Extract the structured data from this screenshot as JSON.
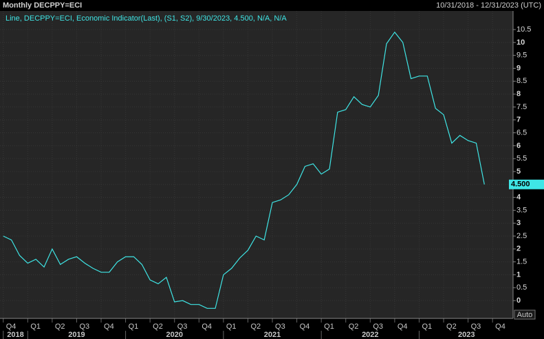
{
  "chart_data": {
    "type": "line",
    "title": "Monthly DECPPY=ECI",
    "date_range": "10/31/2018 - 12/31/2023 (UTC)",
    "legend": "Line, DECPPY=ECI, Economic Indicator(Last), (S1, S2), 9/30/2023, 4.500, N/A, N/A",
    "button": "Auto",
    "series": [
      {
        "color": "#3fe6e6",
        "values": [
          2.5,
          2.35,
          1.75,
          1.45,
          1.6,
          1.3,
          2.0,
          1.4,
          1.6,
          1.7,
          1.45,
          1.25,
          1.1,
          1.1,
          1.5,
          1.7,
          1.7,
          1.4,
          0.8,
          0.65,
          0.9,
          -0.05,
          0.0,
          -0.15,
          -0.15,
          -0.3,
          -0.3,
          1.0,
          1.25,
          1.65,
          1.95,
          2.5,
          2.35,
          3.8,
          3.9,
          4.1,
          4.5,
          5.2,
          5.3,
          4.9,
          5.1,
          7.3,
          7.4,
          7.9,
          7.6,
          7.5,
          7.95,
          9.95,
          10.4,
          10.0,
          8.6,
          8.7,
          8.7,
          7.45,
          7.2,
          6.1,
          6.4,
          6.2,
          6.1,
          4.5
        ]
      }
    ],
    "current_marker": {
      "value": 4.5,
      "label": "4.500"
    },
    "xlim": [
      -0.4,
      62.6
    ],
    "xticks": [
      {
        "value": 0,
        "label": "Q4"
      },
      {
        "value": 3,
        "label": "Q1"
      },
      {
        "value": 6,
        "label": "Q2"
      },
      {
        "value": 9,
        "label": "Q3"
      },
      {
        "value": 12,
        "label": "Q4"
      },
      {
        "value": 15,
        "label": "Q1"
      },
      {
        "value": 18,
        "label": "Q2"
      },
      {
        "value": 21,
        "label": "Q3"
      },
      {
        "value": 24,
        "label": "Q4"
      },
      {
        "value": 27,
        "label": "Q1"
      },
      {
        "value": 30,
        "label": "Q2"
      },
      {
        "value": 33,
        "label": "Q3"
      },
      {
        "value": 36,
        "label": "Q4"
      },
      {
        "value": 39,
        "label": "Q1"
      },
      {
        "value": 42,
        "label": "Q2"
      },
      {
        "value": 45,
        "label": "Q3"
      },
      {
        "value": 48,
        "label": "Q4"
      },
      {
        "value": 51,
        "label": "Q1"
      },
      {
        "value": 54,
        "label": "Q2"
      },
      {
        "value": 57,
        "label": "Q3"
      },
      {
        "value": 60,
        "label": "Q4"
      }
    ],
    "year_ticks": [
      {
        "value": 0,
        "label": "2018"
      },
      {
        "value": 3,
        "label": "2019"
      },
      {
        "value": 15,
        "label": "2020"
      },
      {
        "value": 27,
        "label": "2021"
      },
      {
        "value": 39,
        "label": "2022"
      },
      {
        "value": 51,
        "label": "2023"
      }
    ],
    "ylim": [
      -0.69,
      11.22
    ],
    "yticks": [
      0,
      0.5,
      1,
      1.5,
      2,
      2.5,
      3,
      3.5,
      4,
      4.5,
      5,
      5.5,
      6,
      6.5,
      7,
      7.5,
      8,
      8.5,
      9,
      9.5,
      10,
      10.5
    ],
    "grid": true
  }
}
